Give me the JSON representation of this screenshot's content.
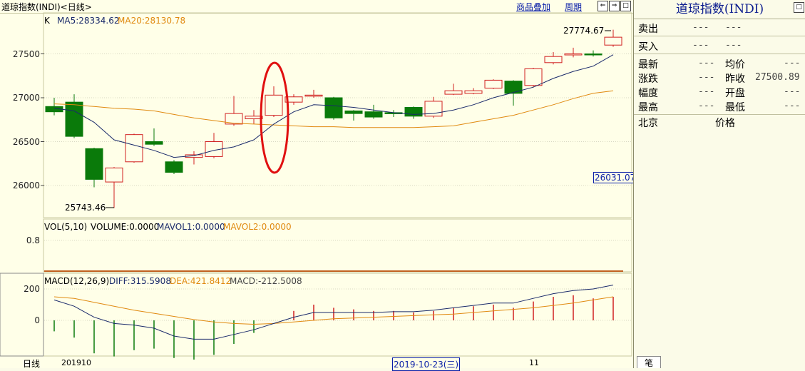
{
  "header": {
    "title": "道琼指数(INDI)<日线>",
    "btn_overlay": "商品叠加",
    "btn_period": "周期",
    "nav_left": "⇐",
    "nav_right": "⇒",
    "nav_max": "□"
  },
  "kline": {
    "legend_k": "K",
    "legend_ma5": "MA5:28334.62",
    "legend_ma20": "MA20:28130.78",
    "y_ticks": [
      "27500",
      "27000",
      "26500",
      "26000"
    ],
    "high_label": "27774.67",
    "low_label": "25743.46",
    "cursor_value": "26031.07",
    "colors": {
      "up": "#d02020",
      "down": "#0a7a0a",
      "ma5": "#1a2a6a",
      "ma20": "#e08a10",
      "annotation": "#e01010"
    }
  },
  "volume": {
    "legend_main": "VOL(5,10)",
    "legend_volume": "VOLUME:0.0000",
    "legend_mavol1": "MAVOL1:0.0000",
    "legend_mavol2": "MAVOL2:0.0000",
    "y_tick": "0.8"
  },
  "macd": {
    "legend_main": "MACD(12,26,9)",
    "legend_diff": "DIFF:315.5908",
    "legend_dea": "DEA:421.8412",
    "legend_macd": "MACD:-212.5008",
    "y_ticks": [
      "200",
      "0"
    ]
  },
  "xaxis": {
    "period_label": "日线",
    "start_label": "201910",
    "cursor_date": "2019-10-23(三)",
    "tick_11": "11"
  },
  "chart_data": {
    "type": "candlestick",
    "candles": [
      {
        "o": 26900,
        "c": 26840,
        "h": 27000,
        "l": 26800
      },
      {
        "o": 26950,
        "c": 26560,
        "h": 27040,
        "l": 26540
      },
      {
        "o": 26420,
        "c": 26070,
        "h": 26430,
        "l": 25980
      },
      {
        "o": 26040,
        "c": 26200,
        "h": 26210,
        "l": 25743
      },
      {
        "o": 26270,
        "c": 26580,
        "h": 26590,
        "l": 26260
      },
      {
        "o": 26500,
        "c": 26470,
        "h": 26650,
        "l": 26450
      },
      {
        "o": 26270,
        "c": 26150,
        "h": 26290,
        "l": 26130
      },
      {
        "o": 26320,
        "c": 26350,
        "h": 26390,
        "l": 26240
      },
      {
        "o": 26330,
        "c": 26500,
        "h": 26600,
        "l": 26310
      },
      {
        "o": 26700,
        "c": 26820,
        "h": 27020,
        "l": 26680
      },
      {
        "o": 26760,
        "c": 26790,
        "h": 26860,
        "l": 26700
      },
      {
        "o": 26800,
        "c": 27030,
        "h": 27130,
        "l": 26780
      },
      {
        "o": 26950,
        "c": 27010,
        "h": 27040,
        "l": 26920
      },
      {
        "o": 27020,
        "c": 27030,
        "h": 27090,
        "l": 27000
      },
      {
        "o": 27000,
        "c": 26770,
        "h": 27010,
        "l": 26750
      },
      {
        "o": 26850,
        "c": 26820,
        "h": 26860,
        "l": 26740
      },
      {
        "o": 26840,
        "c": 26780,
        "h": 26920,
        "l": 26760
      },
      {
        "o": 26830,
        "c": 26820,
        "h": 26860,
        "l": 26780
      },
      {
        "o": 26890,
        "c": 26790,
        "h": 26900,
        "l": 26760
      },
      {
        "o": 26790,
        "c": 26960,
        "h": 27010,
        "l": 26770
      },
      {
        "o": 27040,
        "c": 27080,
        "h": 27160,
        "l": 27030
      },
      {
        "o": 27050,
        "c": 27080,
        "h": 27110,
        "l": 27040
      },
      {
        "o": 27110,
        "c": 27200,
        "h": 27210,
        "l": 27100
      },
      {
        "o": 27190,
        "c": 27050,
        "h": 27200,
        "l": 26910
      },
      {
        "o": 27140,
        "c": 27330,
        "h": 27340,
        "l": 27120
      },
      {
        "o": 27400,
        "c": 27470,
        "h": 27520,
        "l": 27380
      },
      {
        "o": 27490,
        "c": 27500,
        "h": 27570,
        "l": 27460
      },
      {
        "o": 27500,
        "c": 27490,
        "h": 27540,
        "l": 27470
      },
      {
        "o": 27600,
        "c": 27690,
        "h": 27775,
        "l": 27580
      }
    ],
    "ma5": [
      26880,
      26850,
      26720,
      26520,
      26460,
      26400,
      26320,
      26340,
      26400,
      26440,
      26520,
      26700,
      26840,
      26920,
      26910,
      26890,
      26860,
      26830,
      26810,
      26820,
      26860,
      26920,
      27000,
      27060,
      27120,
      27220,
      27300,
      27360,
      27490
    ],
    "ma20": [
      26930,
      26920,
      26900,
      26880,
      26870,
      26850,
      26810,
      26770,
      26740,
      26710,
      26700,
      26690,
      26680,
      26670,
      26670,
      26660,
      26660,
      26660,
      26660,
      26670,
      26680,
      26720,
      26760,
      26800,
      26860,
      26920,
      26990,
      27050,
      27080
    ],
    "macd_diff": [
      130,
      90,
      20,
      -20,
      -30,
      -50,
      -100,
      -120,
      -120,
      -90,
      -60,
      -20,
      20,
      50,
      50,
      50,
      50,
      55,
      55,
      65,
      80,
      95,
      110,
      110,
      140,
      170,
      190,
      200,
      225
    ],
    "macd_dea": [
      150,
      140,
      115,
      90,
      65,
      45,
      25,
      5,
      -10,
      -20,
      -25,
      -20,
      -10,
      0,
      10,
      15,
      20,
      25,
      30,
      35,
      40,
      50,
      60,
      70,
      80,
      95,
      110,
      130,
      150
    ],
    "macd_hist": [
      -70,
      -110,
      -210,
      -230,
      -190,
      -180,
      -240,
      -250,
      -220,
      -150,
      -80,
      0,
      60,
      100,
      80,
      70,
      60,
      60,
      50,
      60,
      80,
      90,
      100,
      80,
      120,
      150,
      160,
      140,
      150
    ],
    "ylim_kline": [
      25600,
      27900
    ]
  }
}
